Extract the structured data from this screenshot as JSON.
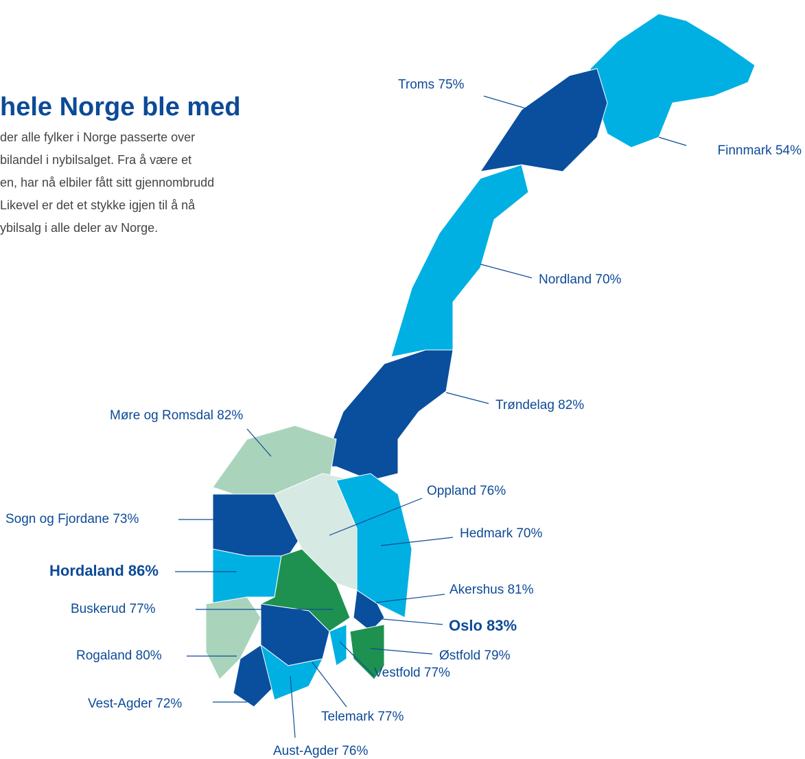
{
  "intro": {
    "title": "hele Norge ble med",
    "lines": [
      "der alle fylker i Norge passerte over",
      "bilandel i nybilsalget. Fra å være et",
      "en, har nå elbiler fått sitt gjennombrudd",
      "Likevel er det et stykke igjen til å nå",
      "ybilsalg i alle deler av Norge."
    ]
  },
  "map": {
    "regions": [
      {
        "label": "Troms 75%"
      },
      {
        "label": "Finnmark 54%"
      },
      {
        "label": "Nordland 70%"
      },
      {
        "label": "Trøndelag 82%"
      },
      {
        "label": "Møre og Romsdal 82%"
      },
      {
        "label": "Oppland 76%"
      },
      {
        "label": "Sogn og Fjordane 73%"
      },
      {
        "label": "Hedmark 70%"
      },
      {
        "label": "Hordaland 86%",
        "emphasis": true
      },
      {
        "label": "Akershus 81%"
      },
      {
        "label": "Buskerud 77%"
      },
      {
        "label": "Oslo 83%",
        "emphasis": true
      },
      {
        "label": "Rogaland 80%"
      },
      {
        "label": "Østfold 79%"
      },
      {
        "label": "Vestfold 77%"
      },
      {
        "label": "Vest-Agder 72%"
      },
      {
        "label": "Telemark 77%"
      },
      {
        "label": "Aust-Agder 76%"
      }
    ]
  }
}
